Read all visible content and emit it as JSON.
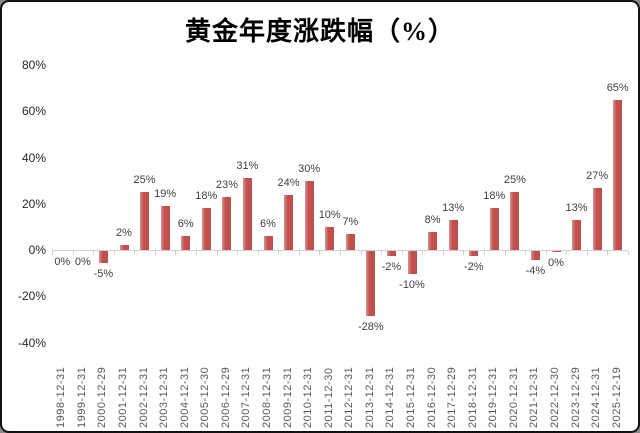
{
  "window": {
    "background": "#ffffff",
    "border_color": "#111111"
  },
  "chart_data": {
    "type": "bar",
    "title": "黄金年度涨跌幅（%）",
    "xlabel": "",
    "ylabel": "",
    "categories": [
      "1998-12-31",
      "1999-12-31",
      "2000-12-29",
      "2001-12-31",
      "2002-12-31",
      "2003-12-31",
      "2004-12-31",
      "2005-12-30",
      "2006-12-29",
      "2007-12-31",
      "2008-12-31",
      "2009-12-31",
      "2010-12-31",
      "2011-12-30",
      "2012-12-31",
      "2013-12-31",
      "2014-12-31",
      "2015-12-31",
      "2016-12-30",
      "2017-12-29",
      "2018-12-31",
      "2019-12-31",
      "2020-12-31",
      "2021-12-31",
      "2022-12-30",
      "2023-12-29",
      "2024-12-31",
      "2025-12-19"
    ],
    "values": [
      0,
      0,
      -5,
      2,
      25,
      19,
      6,
      18,
      23,
      31,
      6,
      24,
      30,
      10,
      7,
      -28,
      -2,
      -10,
      8,
      13,
      -2,
      18,
      25,
      -4,
      -0.3,
      13,
      27,
      65
    ],
    "value_labels": [
      "0%",
      "0%",
      "-5%",
      "2%",
      "25%",
      "19%",
      "6%",
      "18%",
      "23%",
      "31%",
      "6%",
      "24%",
      "30%",
      "10%",
      "7%",
      "-28%",
      "-2%",
      "-10%",
      "8%",
      "13%",
      "-2%",
      "18%",
      "25%",
      "-4%",
      "0%",
      "13%",
      "27%",
      "65%"
    ],
    "y_tick_labels": [
      "80%",
      "60%",
      "40%",
      "20%",
      "0%",
      "-20%",
      "-40%"
    ],
    "y_tick_values": [
      80,
      60,
      40,
      20,
      0,
      -20,
      -40
    ],
    "ylim": [
      -40,
      80
    ],
    "grid": false,
    "legend": false,
    "bar_color": "#c0504d",
    "bar_edge_color": "#d8928f",
    "axis_color": "#d0d0d0",
    "data_label_color": "#404040",
    "x_tick_label_color": "#595959",
    "y_tick_label_color": "#262626"
  }
}
